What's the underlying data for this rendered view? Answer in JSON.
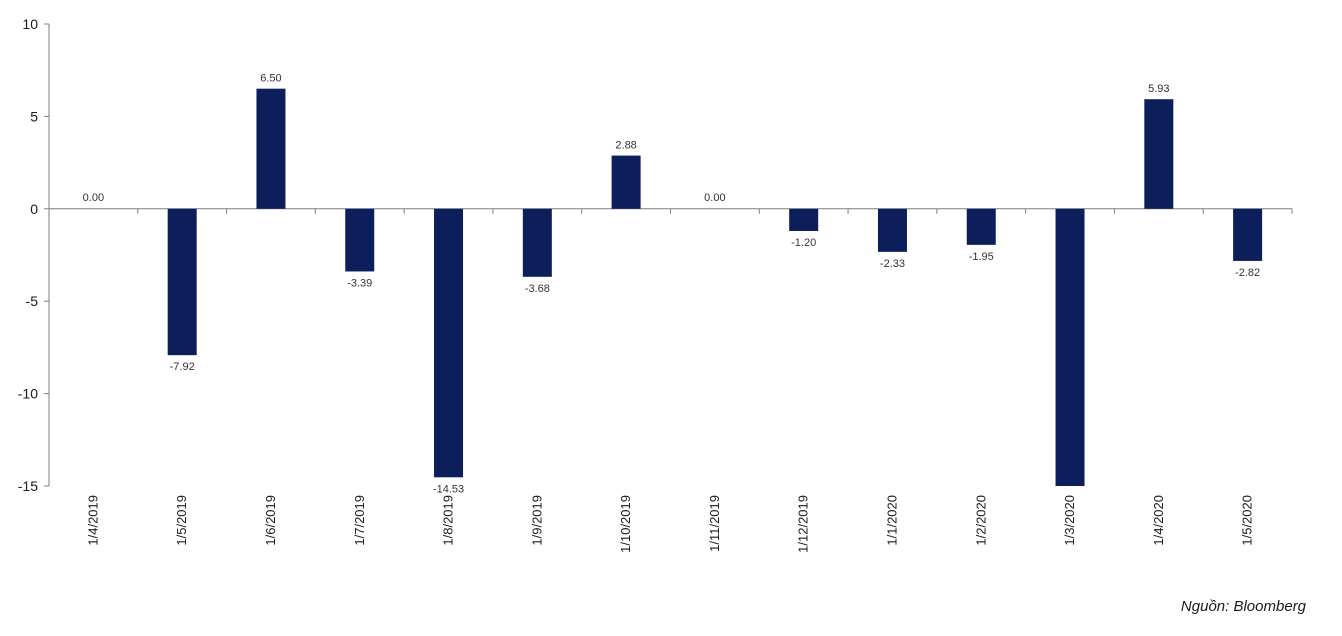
{
  "chart_data": {
    "type": "bar",
    "categories": [
      "1/4/2019",
      "1/5/2019",
      "1/6/2019",
      "1/7/2019",
      "1/8/2019",
      "1/9/2019",
      "1/10/2019",
      "1/11/2019",
      "1/12/2019",
      "1/1/2020",
      "1/2/2020",
      "1/3/2020",
      "1/4/2020",
      "1/5/2020"
    ],
    "values": [
      0.0,
      -7.92,
      6.5,
      -3.39,
      -14.53,
      -3.68,
      2.88,
      0.0,
      -1.2,
      -2.33,
      -1.95,
      -15.0,
      5.93,
      -2.82
    ],
    "value_labels": [
      "0.00",
      "-7.92",
      "6.50",
      "-3.39",
      "-14.53",
      "-3.68",
      "2.88",
      "0.00",
      "-1.20",
      "-2.33",
      "-1.95",
      "",
      "5.93",
      "-2.82"
    ],
    "ylim": [
      -15,
      10
    ],
    "yticks": [
      10,
      5,
      0,
      -5,
      -10,
      -15
    ],
    "grid": false,
    "bar_color": "#0c1f5b",
    "title": "",
    "xlabel": "",
    "ylabel": ""
  },
  "source_note": "Nguồn: Bloomberg"
}
